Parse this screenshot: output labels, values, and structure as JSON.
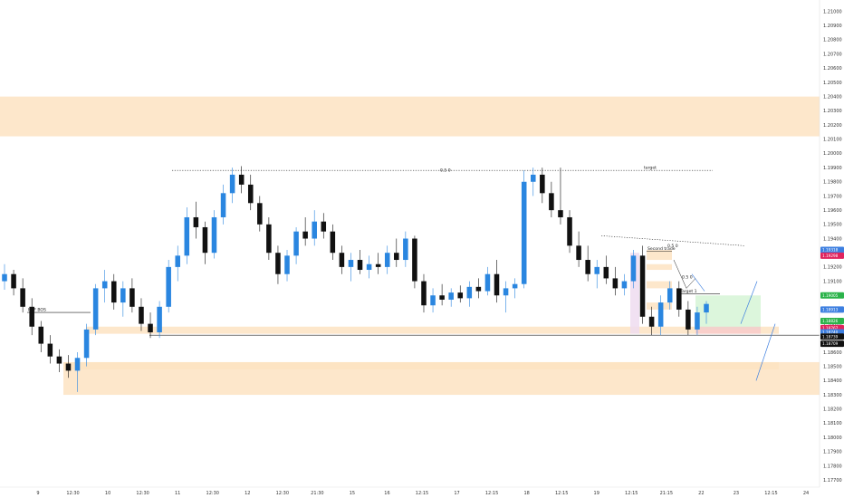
{
  "chart_data": {
    "type": "candlestick",
    "price_axis_ticks": [
      "1.21000",
      "1.20900",
      "1.20800",
      "1.20700",
      "1.20600",
      "1.20500",
      "1.20400",
      "1.20300",
      "1.20200",
      "1.20100",
      "1.20000",
      "1.19900",
      "1.19800",
      "1.19700",
      "1.19600",
      "1.19500",
      "1.19400",
      "1.19300",
      "1.19200",
      "1.19100",
      "1.19000",
      "1.18900",
      "1.18800",
      "1.18700",
      "1.18600",
      "1.18500",
      "1.18400",
      "1.18300",
      "1.18200",
      "1.18100",
      "1.18000",
      "1.17900",
      "1.17800",
      "1.17700"
    ],
    "time_axis_ticks": [
      "9",
      "12:30",
      "10",
      "12:30",
      "11",
      "12:30",
      "12",
      "12:30",
      "21:30",
      "15",
      "16",
      "12:15",
      "17",
      "12:15",
      "18",
      "12:15",
      "19",
      "12:15",
      "21:15",
      "22",
      "23",
      "12:15",
      "24"
    ],
    "ylim": [
      1.1765,
      1.2108
    ],
    "candles": [
      {
        "o": 1.191,
        "h": 1.1922,
        "l": 1.1904,
        "c": 1.1915
      },
      {
        "o": 1.1915,
        "h": 1.1918,
        "l": 1.19,
        "c": 1.1905
      },
      {
        "o": 1.1905,
        "h": 1.1912,
        "l": 1.1888,
        "c": 1.1892
      },
      {
        "o": 1.1892,
        "h": 1.1898,
        "l": 1.1872,
        "c": 1.1878
      },
      {
        "o": 1.1878,
        "h": 1.1882,
        "l": 1.186,
        "c": 1.1866
      },
      {
        "o": 1.1866,
        "h": 1.1872,
        "l": 1.1852,
        "c": 1.1857
      },
      {
        "o": 1.1857,
        "h": 1.1862,
        "l": 1.1846,
        "c": 1.1852
      },
      {
        "o": 1.1852,
        "h": 1.1858,
        "l": 1.1842,
        "c": 1.1847
      },
      {
        "o": 1.1847,
        "h": 1.186,
        "l": 1.1832,
        "c": 1.1856
      },
      {
        "o": 1.1856,
        "h": 1.188,
        "l": 1.185,
        "c": 1.1876
      },
      {
        "o": 1.1876,
        "h": 1.1908,
        "l": 1.1872,
        "c": 1.1905
      },
      {
        "o": 1.1905,
        "h": 1.1918,
        "l": 1.1895,
        "c": 1.191
      },
      {
        "o": 1.191,
        "h": 1.1915,
        "l": 1.189,
        "c": 1.1895
      },
      {
        "o": 1.1895,
        "h": 1.191,
        "l": 1.1885,
        "c": 1.1905
      },
      {
        "o": 1.1905,
        "h": 1.1912,
        "l": 1.1888,
        "c": 1.1892
      },
      {
        "o": 1.1892,
        "h": 1.1898,
        "l": 1.1875,
        "c": 1.188
      },
      {
        "o": 1.188,
        "h": 1.1888,
        "l": 1.187,
        "c": 1.1874
      },
      {
        "o": 1.1874,
        "h": 1.1896,
        "l": 1.187,
        "c": 1.1892
      },
      {
        "o": 1.1892,
        "h": 1.1925,
        "l": 1.1888,
        "c": 1.192
      },
      {
        "o": 1.192,
        "h": 1.1935,
        "l": 1.191,
        "c": 1.1928
      },
      {
        "o": 1.1928,
        "h": 1.1962,
        "l": 1.1922,
        "c": 1.1955
      },
      {
        "o": 1.1955,
        "h": 1.1966,
        "l": 1.194,
        "c": 1.1948
      },
      {
        "o": 1.1948,
        "h": 1.1952,
        "l": 1.1922,
        "c": 1.193
      },
      {
        "o": 1.193,
        "h": 1.196,
        "l": 1.1926,
        "c": 1.1955
      },
      {
        "o": 1.1955,
        "h": 1.1978,
        "l": 1.195,
        "c": 1.1972
      },
      {
        "o": 1.1972,
        "h": 1.199,
        "l": 1.1965,
        "c": 1.1985
      },
      {
        "o": 1.1985,
        "h": 1.1991,
        "l": 1.1972,
        "c": 1.1978
      },
      {
        "o": 1.1978,
        "h": 1.1985,
        "l": 1.196,
        "c": 1.1965
      },
      {
        "o": 1.1965,
        "h": 1.197,
        "l": 1.1945,
        "c": 1.195
      },
      {
        "o": 1.195,
        "h": 1.1955,
        "l": 1.1925,
        "c": 1.193
      },
      {
        "o": 1.193,
        "h": 1.1935,
        "l": 1.1908,
        "c": 1.1915
      },
      {
        "o": 1.1915,
        "h": 1.1932,
        "l": 1.191,
        "c": 1.1928
      },
      {
        "o": 1.1928,
        "h": 1.1948,
        "l": 1.1922,
        "c": 1.1945
      },
      {
        "o": 1.1945,
        "h": 1.1955,
        "l": 1.1935,
        "c": 1.194
      },
      {
        "o": 1.194,
        "h": 1.196,
        "l": 1.1935,
        "c": 1.1952
      },
      {
        "o": 1.1952,
        "h": 1.1958,
        "l": 1.194,
        "c": 1.1945
      },
      {
        "o": 1.1945,
        "h": 1.195,
        "l": 1.1925,
        "c": 1.193
      },
      {
        "o": 1.193,
        "h": 1.1935,
        "l": 1.1915,
        "c": 1.192
      },
      {
        "o": 1.192,
        "h": 1.193,
        "l": 1.191,
        "c": 1.1925
      },
      {
        "o": 1.1925,
        "h": 1.1932,
        "l": 1.1915,
        "c": 1.1918
      },
      {
        "o": 1.1918,
        "h": 1.1928,
        "l": 1.1912,
        "c": 1.1922
      },
      {
        "o": 1.1922,
        "h": 1.193,
        "l": 1.1915,
        "c": 1.192
      },
      {
        "o": 1.192,
        "h": 1.1935,
        "l": 1.1915,
        "c": 1.193
      },
      {
        "o": 1.193,
        "h": 1.194,
        "l": 1.192,
        "c": 1.1925
      },
      {
        "o": 1.1925,
        "h": 1.1945,
        "l": 1.192,
        "c": 1.194
      },
      {
        "o": 1.194,
        "h": 1.1942,
        "l": 1.1905,
        "c": 1.191
      },
      {
        "o": 1.191,
        "h": 1.1915,
        "l": 1.1888,
        "c": 1.1893
      },
      {
        "o": 1.1893,
        "h": 1.1905,
        "l": 1.1888,
        "c": 1.19
      },
      {
        "o": 1.19,
        "h": 1.1908,
        "l": 1.1893,
        "c": 1.1897
      },
      {
        "o": 1.1897,
        "h": 1.1905,
        "l": 1.1892,
        "c": 1.1902
      },
      {
        "o": 1.1902,
        "h": 1.1907,
        "l": 1.1895,
        "c": 1.1898
      },
      {
        "o": 1.1898,
        "h": 1.191,
        "l": 1.1892,
        "c": 1.1906
      },
      {
        "o": 1.1906,
        "h": 1.1912,
        "l": 1.1898,
        "c": 1.1903
      },
      {
        "o": 1.1903,
        "h": 1.192,
        "l": 1.19,
        "c": 1.1915
      },
      {
        "o": 1.1915,
        "h": 1.1925,
        "l": 1.1895,
        "c": 1.19
      },
      {
        "o": 1.19,
        "h": 1.191,
        "l": 1.1888,
        "c": 1.1905
      },
      {
        "o": 1.1905,
        "h": 1.1912,
        "l": 1.1898,
        "c": 1.1908
      },
      {
        "o": 1.1908,
        "h": 1.1988,
        "l": 1.1905,
        "c": 1.198
      },
      {
        "o": 1.198,
        "h": 1.199,
        "l": 1.197,
        "c": 1.1985
      },
      {
        "o": 1.1985,
        "h": 1.199,
        "l": 1.1965,
        "c": 1.1972
      },
      {
        "o": 1.1972,
        "h": 1.198,
        "l": 1.1955,
        "c": 1.196
      },
      {
        "o": 1.196,
        "h": 1.199,
        "l": 1.195,
        "c": 1.1955
      },
      {
        "o": 1.1955,
        "h": 1.196,
        "l": 1.193,
        "c": 1.1935
      },
      {
        "o": 1.1935,
        "h": 1.1945,
        "l": 1.192,
        "c": 1.1925
      },
      {
        "o": 1.1925,
        "h": 1.1935,
        "l": 1.191,
        "c": 1.1915
      },
      {
        "o": 1.1915,
        "h": 1.1925,
        "l": 1.1905,
        "c": 1.192
      },
      {
        "o": 1.192,
        "h": 1.1928,
        "l": 1.1908,
        "c": 1.1912
      },
      {
        "o": 1.1912,
        "h": 1.192,
        "l": 1.19,
        "c": 1.1905
      },
      {
        "o": 1.1905,
        "h": 1.1915,
        "l": 1.19,
        "c": 1.191
      },
      {
        "o": 1.191,
        "h": 1.1932,
        "l": 1.1905,
        "c": 1.1928
      },
      {
        "o": 1.1928,
        "h": 1.1935,
        "l": 1.188,
        "c": 1.1885
      },
      {
        "o": 1.1885,
        "h": 1.1892,
        "l": 1.1872,
        "c": 1.1878
      },
      {
        "o": 1.1878,
        "h": 1.19,
        "l": 1.1872,
        "c": 1.1895
      },
      {
        "o": 1.1895,
        "h": 1.191,
        "l": 1.189,
        "c": 1.1905
      },
      {
        "o": 1.1905,
        "h": 1.191,
        "l": 1.1885,
        "c": 1.189
      },
      {
        "o": 1.189,
        "h": 1.1896,
        "l": 1.1872,
        "c": 1.1876
      },
      {
        "o": 1.1876,
        "h": 1.1892,
        "l": 1.1872,
        "c": 1.1888
      },
      {
        "o": 1.1888,
        "h": 1.1896,
        "l": 1.188,
        "c": 1.1894
      }
    ],
    "zones": [
      {
        "y1": 1.204,
        "y2": 1.2012,
        "x1": 0,
        "x2": 905,
        "color": "#fde3c2"
      },
      {
        "y1": 1.1878,
        "y2": 1.1873,
        "x1": 95,
        "x2": 860,
        "color": "#fde3c2"
      },
      {
        "y1": 1.1853,
        "y2": 1.1848,
        "x1": 70,
        "x2": 860,
        "color": "#fde3c2"
      },
      {
        "y1": 1.1853,
        "y2": 1.183,
        "x1": 70,
        "x2": 905,
        "color": "#fde3c2"
      },
      {
        "y1": 1.193,
        "y2": 1.1873,
        "x1": 696,
        "x2": 706,
        "color": "#eedcf0"
      },
      {
        "y1": 1.1932,
        "y2": 1.1925,
        "x1": 714,
        "x2": 742,
        "color": "#fde3c2"
      },
      {
        "y1": 1.1922,
        "y2": 1.1918,
        "x1": 714,
        "x2": 742,
        "color": "#fde3c2"
      },
      {
        "y1": 1.191,
        "y2": 1.1905,
        "x1": 714,
        "x2": 742,
        "color": "#fde3c2"
      },
      {
        "y1": 1.1895,
        "y2": 1.189,
        "x1": 714,
        "x2": 742,
        "color": "#fde3c2"
      }
    ],
    "levels": [
      {
        "y": 1.1988,
        "x1": 190,
        "x2": 787,
        "style": "dotted",
        "label": "target"
      },
      {
        "y": 1.1888,
        "x1": 30,
        "x2": 100,
        "style": "solid",
        "label": "HTF BOS"
      },
      {
        "y": 1.1872,
        "x1": 165,
        "x2": 905,
        "style": "solid",
        "label": ""
      },
      {
        "y": 1.1931,
        "x1": 714,
        "x2": 742,
        "style": "solid",
        "label": "Second trade"
      },
      {
        "y": 1.1901,
        "x1": 750,
        "x2": 795,
        "style": "solid",
        "label": "Target 1"
      }
    ],
    "annotations": [
      {
        "text": "0.5 0",
        "y": 1.1988
      },
      {
        "text": "0.5 0",
        "y": 1.1935
      },
      {
        "text": "0.5 0",
        "y": 1.1913
      }
    ],
    "price_badges": [
      {
        "text": "1.19318",
        "y": 1.1932,
        "color": "#3d7fe0"
      },
      {
        "text": "1.19298",
        "y": 1.1928,
        "color": "#e0245e"
      },
      {
        "text": "1.19005",
        "y": 1.19,
        "color": "#2bb34a"
      },
      {
        "text": "1.18913",
        "y": 1.189,
        "color": "#3d7fe0"
      },
      {
        "text": "1.18826",
        "y": 1.1882,
        "color": "#2bb34a"
      },
      {
        "text": "1.18767",
        "y": 1.1877,
        "color": "#e0245e"
      },
      {
        "text": "1.18740",
        "y": 1.1874,
        "color": "#3d7fe0"
      },
      {
        "text": "1.18739",
        "y": 1.1871,
        "color": "#111111"
      },
      {
        "text": "1.18709",
        "y": 1.1866,
        "color": "#111111"
      }
    ]
  }
}
